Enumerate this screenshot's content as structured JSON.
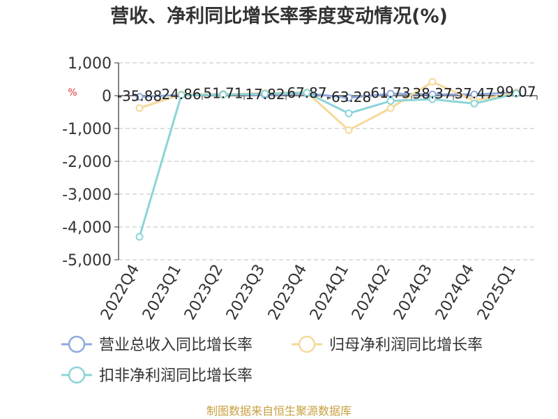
{
  "chart_data": {
    "type": "line",
    "title": "营收、净利同比增长率季度变动情况(%)",
    "unit_label": "%",
    "categories": [
      "2022Q4",
      "2023Q1",
      "2023Q2",
      "2023Q3",
      "2023Q4",
      "2024Q1",
      "2024Q2",
      "2024Q3",
      "2024Q4",
      "2025Q1"
    ],
    "ylim": [
      -5000,
      1000
    ],
    "yticks": [
      1000,
      0,
      -1000,
      -2000,
      -3000,
      -4000,
      -5000
    ],
    "ytick_labels": [
      "1,000",
      "0",
      "-1,000",
      "-2,000",
      "-3,000",
      "-4,000",
      "-5,000"
    ],
    "grid": true,
    "legend_position": "bottom",
    "series": [
      {
        "name": "营业总收入同比增长率",
        "color": "#8faadc",
        "values": [
          -35.88,
          24.86,
          51.71,
          17.82,
          67.87,
          -63.28,
          61.73,
          38.37,
          37.47,
          99.07
        ],
        "labels": [
          "-35.88",
          "24.86",
          "51.71",
          "17.82",
          "67.87",
          "-63.28",
          "61.73",
          "38.37",
          "37.47",
          "99.07"
        ]
      },
      {
        "name": "归母净利润同比增长率",
        "color": "#f6d89a",
        "values": [
          -380,
          40,
          40,
          80,
          100,
          -1050,
          -380,
          420,
          -150,
          90
        ],
        "labels": []
      },
      {
        "name": "扣非净利润同比增长率",
        "color": "#8dd4d8",
        "values": [
          -4300,
          20,
          30,
          60,
          90,
          -540,
          -160,
          -110,
          -240,
          60
        ],
        "labels": []
      }
    ]
  },
  "source_text": "制图数据来自恒生聚源数据库"
}
